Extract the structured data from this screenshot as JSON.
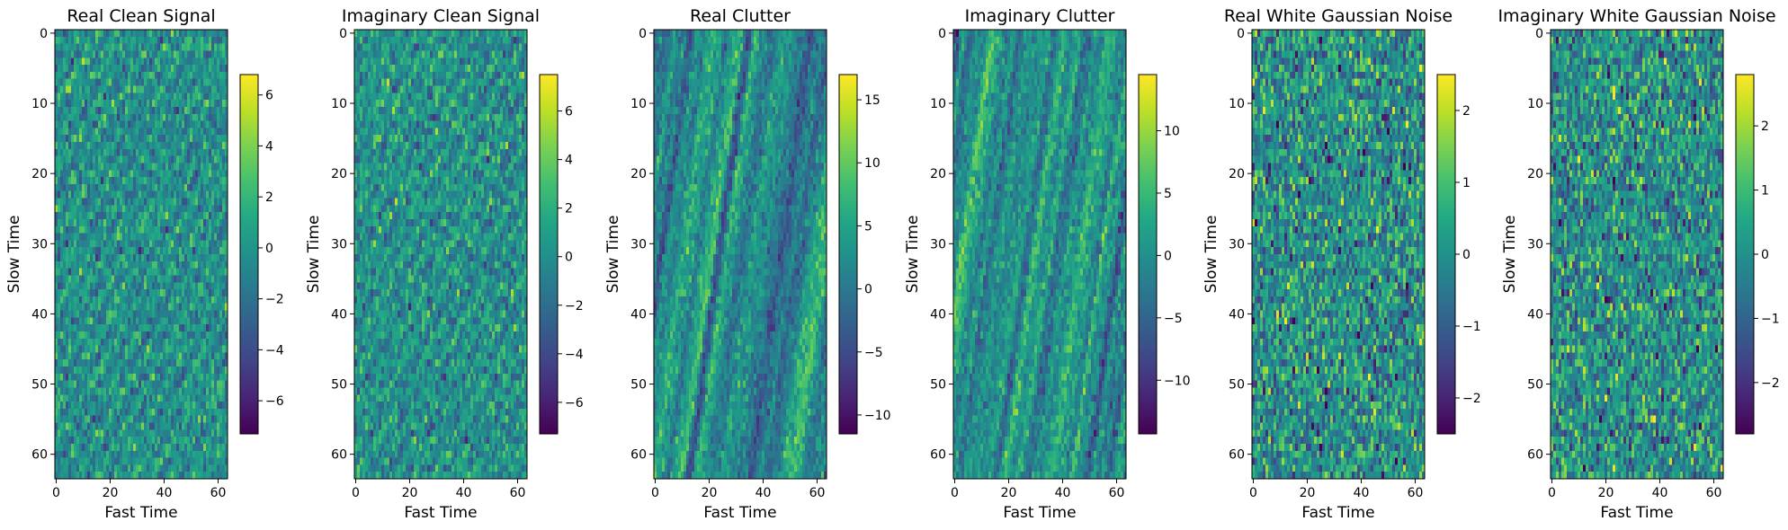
{
  "chart_data": [
    {
      "type": "heatmap",
      "title": "Real Clean Signal",
      "xlabel": "Fast Time",
      "ylabel": "Slow Time",
      "shape": [
        64,
        64
      ],
      "xlim": [
        0,
        63
      ],
      "ylim": [
        63,
        0
      ],
      "x_ticks": [
        "0",
        "20",
        "40",
        "60"
      ],
      "y_ticks": [
        "0",
        "10",
        "20",
        "30",
        "40",
        "50",
        "60"
      ],
      "colormap": "viridis",
      "vmin": -7.3,
      "vmax": 6.8,
      "colorbar_ticks": [
        "6",
        "4",
        "2",
        "0",
        "−2",
        "−4",
        "−6"
      ],
      "colorbar_values": [
        6,
        4,
        2,
        0,
        -2,
        -4,
        -6
      ],
      "pattern": "signal",
      "seed": 11
    },
    {
      "type": "heatmap",
      "title": "Imaginary Clean Signal",
      "xlabel": "Fast Time",
      "ylabel": "Slow Time",
      "shape": [
        64,
        64
      ],
      "xlim": [
        0,
        63
      ],
      "ylim": [
        63,
        0
      ],
      "x_ticks": [
        "0",
        "20",
        "40",
        "60"
      ],
      "y_ticks": [
        "0",
        "10",
        "20",
        "30",
        "40",
        "50",
        "60"
      ],
      "colormap": "viridis",
      "vmin": -7.3,
      "vmax": 7.5,
      "colorbar_ticks": [
        "6",
        "4",
        "2",
        "0",
        "−2",
        "−4",
        "−6"
      ],
      "colorbar_values": [
        6,
        4,
        2,
        0,
        -2,
        -4,
        -6
      ],
      "pattern": "signal",
      "seed": 23
    },
    {
      "type": "heatmap",
      "title": "Real Clutter",
      "xlabel": "Fast Time",
      "ylabel": "Slow Time",
      "shape": [
        64,
        64
      ],
      "xlim": [
        0,
        63
      ],
      "ylim": [
        63,
        0
      ],
      "x_ticks": [
        "0",
        "20",
        "40",
        "60"
      ],
      "y_ticks": [
        "0",
        "10",
        "20",
        "30",
        "40",
        "50",
        "60"
      ],
      "colormap": "viridis",
      "vmin": -11.5,
      "vmax": 17,
      "colorbar_ticks": [
        "15",
        "10",
        "5",
        "0",
        "−5",
        "−10"
      ],
      "colorbar_values": [
        15,
        10,
        5,
        0,
        -5,
        -10
      ],
      "pattern": "clutter",
      "seed": 37
    },
    {
      "type": "heatmap",
      "title": "Imaginary Clutter",
      "xlabel": "Fast Time",
      "ylabel": "Slow Time",
      "shape": [
        64,
        64
      ],
      "xlim": [
        0,
        63
      ],
      "ylim": [
        63,
        0
      ],
      "x_ticks": [
        "0",
        "20",
        "40",
        "60"
      ],
      "y_ticks": [
        "0",
        "10",
        "20",
        "30",
        "40",
        "50",
        "60"
      ],
      "colormap": "viridis",
      "vmin": -14.3,
      "vmax": 14.5,
      "colorbar_ticks": [
        "10",
        "5",
        "0",
        "−5",
        "−10"
      ],
      "colorbar_values": [
        10,
        5,
        0,
        -5,
        -10
      ],
      "pattern": "clutter",
      "seed": 41
    },
    {
      "type": "heatmap",
      "title": "Real White Gaussian Noise",
      "xlabel": "Fast Time",
      "ylabel": "Slow Time",
      "shape": [
        64,
        64
      ],
      "xlim": [
        0,
        63
      ],
      "ylim": [
        63,
        0
      ],
      "x_ticks": [
        "0",
        "20",
        "40",
        "60"
      ],
      "y_ticks": [
        "0",
        "10",
        "20",
        "30",
        "40",
        "50",
        "60"
      ],
      "colormap": "viridis",
      "vmin": -2.5,
      "vmax": 2.5,
      "colorbar_ticks": [
        "2",
        "1",
        "0",
        "−1",
        "−2"
      ],
      "colorbar_values": [
        2,
        1,
        0,
        -1,
        -2
      ],
      "pattern": "noise",
      "seed": 53
    },
    {
      "type": "heatmap",
      "title": "Imaginary White Gaussian Noise",
      "xlabel": "Fast Time",
      "ylabel": "Slow Time",
      "shape": [
        64,
        64
      ],
      "xlim": [
        0,
        63
      ],
      "ylim": [
        63,
        0
      ],
      "x_ticks": [
        "0",
        "20",
        "40",
        "60"
      ],
      "y_ticks": [
        "0",
        "10",
        "20",
        "30",
        "40",
        "50",
        "60"
      ],
      "colormap": "viridis",
      "vmin": -2.8,
      "vmax": 2.8,
      "colorbar_ticks": [
        "2",
        "1",
        "0",
        "−1",
        "−2"
      ],
      "colorbar_values": [
        2,
        1,
        0,
        -1,
        -2
      ],
      "pattern": "noise",
      "seed": 67
    }
  ]
}
